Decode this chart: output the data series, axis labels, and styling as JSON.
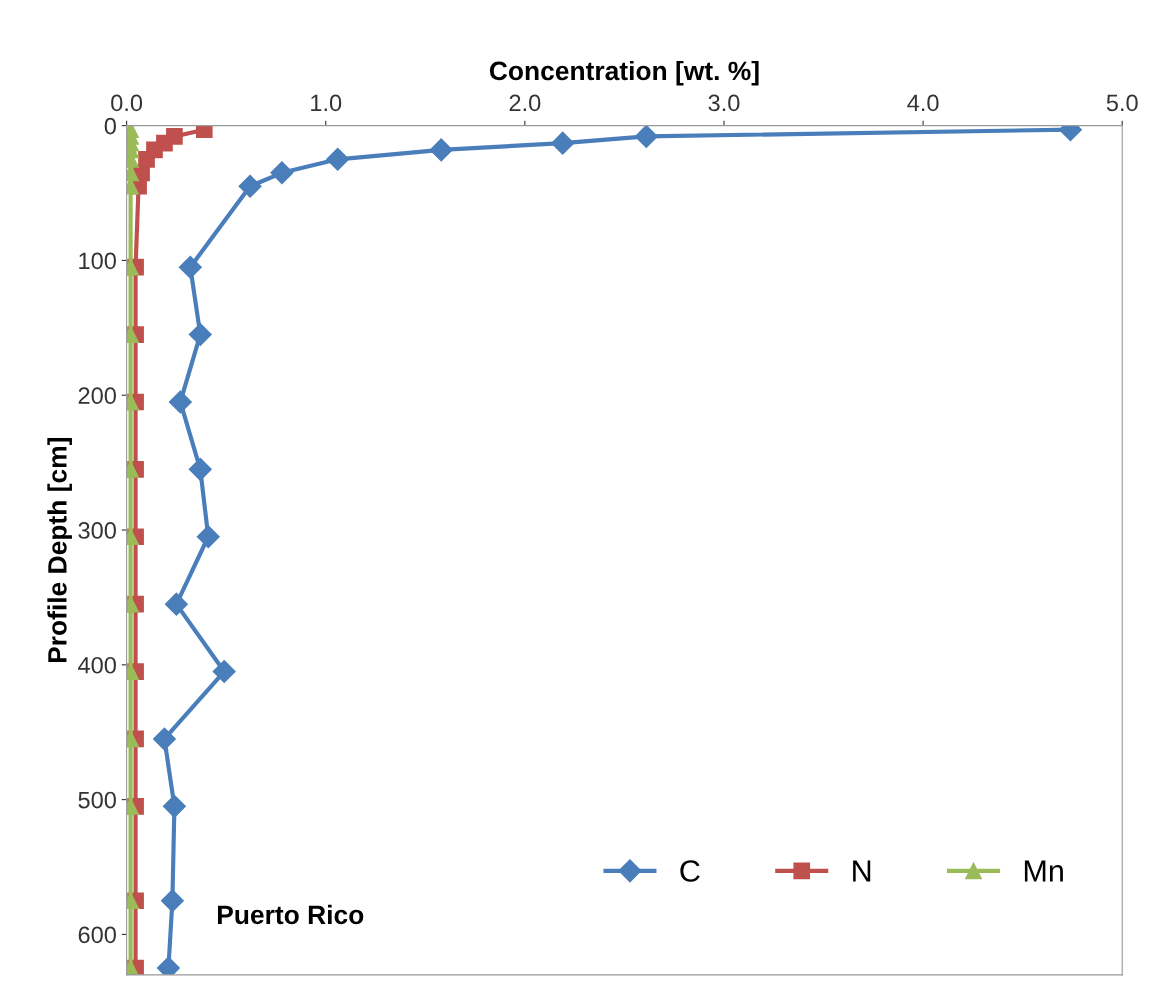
{
  "chart_data": {
    "type": "line",
    "xlabel": "Concentration [wt. %]",
    "ylabel": "Profile Depth [cm]",
    "xlim": [
      0,
      5
    ],
    "xticks": [
      {
        "value": 0,
        "label": "0.0"
      },
      {
        "value": 1,
        "label": "1.0"
      },
      {
        "value": 2,
        "label": "2.0"
      },
      {
        "value": 3,
        "label": "3.0"
      },
      {
        "value": 4,
        "label": "4.0"
      },
      {
        "value": 5,
        "label": "5.0"
      }
    ],
    "ylim": [
      630,
      0
    ],
    "yticks": [
      0,
      100,
      200,
      300,
      400,
      500,
      600
    ],
    "grid": false,
    "legend": "bottom right",
    "line_style": "solid",
    "annotations": [
      "Puerto Rico"
    ],
    "series": [
      {
        "name": "C",
        "color": "#4a7ebb",
        "marker": "diamond",
        "x": [
          4.74,
          2.61,
          2.19,
          1.58,
          1.06,
          0.78,
          0.62,
          0.32,
          0.37,
          0.27,
          0.37,
          0.41,
          0.25,
          0.49,
          0.19,
          0.24,
          0.23,
          0.21
        ],
        "values": [
          3,
          8,
          13,
          18,
          25,
          35,
          45,
          105,
          155,
          205,
          255,
          305,
          355,
          405,
          455,
          505,
          575,
          625
        ]
      },
      {
        "name": "N",
        "color": "#c0504d",
        "marker": "square",
        "x": [
          0.39,
          0.24,
          0.19,
          0.14,
          0.1,
          0.075,
          0.06,
          0.045,
          0.045,
          0.045,
          0.045,
          0.045,
          0.045,
          0.045,
          0.045,
          0.045,
          0.045,
          0.045
        ],
        "values": [
          3,
          8,
          13,
          18,
          25,
          35,
          45,
          105,
          155,
          205,
          255,
          305,
          355,
          405,
          455,
          505,
          575,
          625
        ]
      },
      {
        "name": "Mn",
        "color": "#9bbb59",
        "marker": "triangle",
        "x": [
          0.02,
          0.02,
          0.02,
          0.02,
          0.02,
          0.02,
          0.02,
          0.02,
          0.02,
          0.02,
          0.02,
          0.02,
          0.02,
          0.02,
          0.02,
          0.02,
          0.02,
          0.02
        ],
        "values": [
          3,
          8,
          13,
          18,
          25,
          35,
          45,
          105,
          155,
          205,
          255,
          305,
          355,
          405,
          455,
          505,
          575,
          625
        ]
      }
    ]
  }
}
